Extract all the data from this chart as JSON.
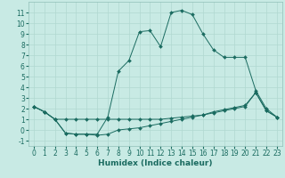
{
  "xlabel": "Humidex (Indice chaleur)",
  "bg_color": "#c8eae4",
  "line_color": "#1a6b60",
  "grid_color": "#b0d8d0",
  "xlim": [
    -0.5,
    23.5
  ],
  "ylim": [
    -1.5,
    12.0
  ],
  "xticks": [
    0,
    1,
    2,
    3,
    4,
    5,
    6,
    7,
    8,
    9,
    10,
    11,
    12,
    13,
    14,
    15,
    16,
    17,
    18,
    19,
    20,
    21,
    22,
    23
  ],
  "yticks": [
    -1,
    0,
    1,
    2,
    3,
    4,
    5,
    6,
    7,
    8,
    9,
    10,
    11
  ],
  "line1_x": [
    0,
    1,
    2,
    3,
    4,
    5,
    6,
    7,
    8,
    9,
    10,
    11,
    12,
    13,
    14,
    15,
    16,
    17,
    18,
    19,
    20,
    21,
    22,
    23
  ],
  "line1_y": [
    2.2,
    1.7,
    1.0,
    1.0,
    1.0,
    1.0,
    1.0,
    1.0,
    1.0,
    1.0,
    1.0,
    1.0,
    1.0,
    1.1,
    1.2,
    1.3,
    1.4,
    1.6,
    1.8,
    2.0,
    2.2,
    3.5,
    1.8,
    1.2
  ],
  "line2_x": [
    0,
    1,
    2,
    3,
    4,
    5,
    6,
    7,
    8,
    9,
    10,
    11,
    12,
    13,
    14,
    15,
    16,
    17,
    18,
    19,
    20,
    21,
    22,
    23
  ],
  "line2_y": [
    2.2,
    1.7,
    1.0,
    -0.3,
    -0.4,
    -0.4,
    -0.5,
    -0.4,
    0.0,
    0.1,
    0.2,
    0.4,
    0.6,
    0.8,
    1.0,
    1.2,
    1.4,
    1.7,
    1.9,
    2.1,
    2.3,
    3.5,
    1.8,
    1.2
  ],
  "line3_x": [
    0,
    1,
    2,
    3,
    4,
    5,
    6,
    7,
    8,
    9,
    10,
    11,
    12,
    13,
    14,
    15,
    16,
    17,
    18,
    19,
    20,
    21,
    22,
    23
  ],
  "line3_y": [
    2.2,
    1.7,
    1.0,
    -0.3,
    -0.4,
    -0.4,
    -0.4,
    1.2,
    5.5,
    6.5,
    9.2,
    9.3,
    7.8,
    11.0,
    11.2,
    10.8,
    9.0,
    7.5,
    6.8,
    6.8,
    6.8,
    3.7,
    2.0,
    1.2
  ],
  "tick_fontsize": 5.5,
  "xlabel_fontsize": 6.5,
  "xlabel_fontweight": "bold"
}
